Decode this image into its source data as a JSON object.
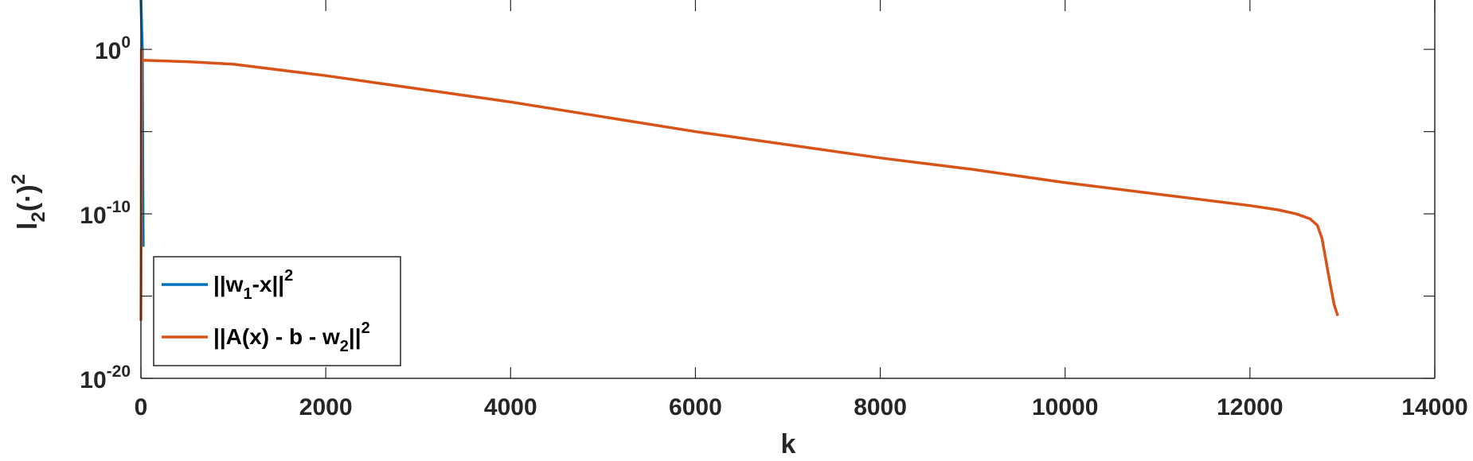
{
  "chart_data": {
    "type": "line",
    "title": "",
    "xlabel": "k",
    "ylabel": {
      "base": "l",
      "sub": "2",
      "body": "(·)",
      "sup": "2"
    },
    "xlim": [
      0,
      14000
    ],
    "ylim_log10": [
      -20,
      3
    ],
    "yscale": "log",
    "grid": false,
    "xticks": [
      0,
      2000,
      4000,
      6000,
      8000,
      10000,
      12000,
      14000
    ],
    "xtick_labels": [
      "0",
      "2000",
      "4000",
      "6000",
      "8000",
      "10000",
      "12000",
      "14000"
    ],
    "yticks_log10": [
      -20,
      -10,
      0
    ],
    "ytick_labels": [
      {
        "base": "10",
        "exp": "-20"
      },
      {
        "base": "10",
        "exp": "-10"
      },
      {
        "base": "10",
        "exp": "0"
      }
    ],
    "legend_position": "bottom-left",
    "series": [
      {
        "name": {
          "pre": "||w",
          "sub": "1",
          "mid": "-x||",
          "sup": "2"
        },
        "color": "#0072BD",
        "points_log10": [
          [
            0,
            3.0
          ],
          [
            5,
            2.0
          ],
          [
            10,
            1.0
          ],
          [
            15,
            0.0
          ],
          [
            20,
            -7.0
          ],
          [
            25,
            -12.0
          ]
        ]
      },
      {
        "name": {
          "pre": "||A(x) - b - w",
          "sub": "2",
          "mid": "||",
          "sup": "2"
        },
        "color": "#D95319",
        "points_log10": [
          [
            0,
            -16.5
          ],
          [
            3,
            -10.0
          ],
          [
            5,
            0.0
          ],
          [
            10,
            -0.66
          ],
          [
            500,
            -0.75
          ],
          [
            1000,
            -0.9
          ],
          [
            2000,
            -1.6
          ],
          [
            3000,
            -2.4
          ],
          [
            4000,
            -3.2
          ],
          [
            5000,
            -4.1
          ],
          [
            6000,
            -5.0
          ],
          [
            7000,
            -5.8
          ],
          [
            8000,
            -6.6
          ],
          [
            9000,
            -7.3
          ],
          [
            10000,
            -8.1
          ],
          [
            11000,
            -8.8
          ],
          [
            11500,
            -9.15
          ],
          [
            12000,
            -9.5
          ],
          [
            12300,
            -9.75
          ],
          [
            12500,
            -10.0
          ],
          [
            12650,
            -10.3
          ],
          [
            12730,
            -10.7
          ],
          [
            12780,
            -11.5
          ],
          [
            12850,
            -13.7
          ],
          [
            12910,
            -15.5
          ],
          [
            12950,
            -16.2
          ]
        ]
      }
    ]
  }
}
